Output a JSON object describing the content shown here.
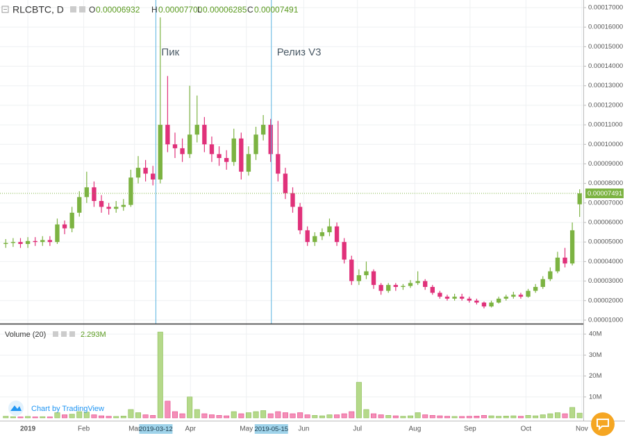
{
  "chart_data": {
    "type": "candlestick",
    "title": "RLCBTC, D",
    "xlim": [
      0,
      79
    ],
    "xticks": [
      {
        "value": 3.5,
        "label": "2019"
      },
      {
        "value": 11.1,
        "label": "Feb"
      },
      {
        "value": 18.0,
        "label": "Mar"
      },
      {
        "value": 25.6,
        "label": "Apr"
      },
      {
        "value": 33.2,
        "label": "May"
      },
      {
        "value": 41.0,
        "label": "Jun"
      },
      {
        "value": 48.3,
        "label": "Jul"
      },
      {
        "value": 56.1,
        "label": "Aug"
      },
      {
        "value": 63.6,
        "label": "Sep"
      },
      {
        "value": 71.2,
        "label": "Oct"
      },
      {
        "value": 78.8,
        "label": "Nov"
      }
    ],
    "grid": true,
    "events": [
      {
        "x": 20.9,
        "label": "Пик",
        "date": "2019-03-12"
      },
      {
        "x": 36.6,
        "label": "Релиз V3",
        "date": "2019-05-15"
      }
    ],
    "watermark": "Chart by TradingView",
    "price": {
      "up_color": "#7cb342",
      "down_color": "#e0317a",
      "header_prefixes": [
        "O",
        "H",
        "L",
        "C"
      ],
      "last_labels": {
        "open": "0.00006932",
        "high": "0.00007700",
        "low": "0.00006285",
        "close": "0.00007491"
      },
      "ylim": [
        8.2e-06,
        0.0001739
      ],
      "yticks": [
        {
          "value": 1e-05,
          "label": "0.00001000"
        },
        {
          "value": 2e-05,
          "label": "0.00002000"
        },
        {
          "value": 3e-05,
          "label": "0.00003000"
        },
        {
          "value": 4e-05,
          "label": "0.00004000"
        },
        {
          "value": 5e-05,
          "label": "0.00005000"
        },
        {
          "value": 6e-05,
          "label": "0.00006000"
        },
        {
          "value": 7e-05,
          "label": "0.00007000"
        },
        {
          "value": 8e-05,
          "label": "0.00008000"
        },
        {
          "value": 9e-05,
          "label": "0.00009000"
        },
        {
          "value": 0.0001,
          "label": "0.00010000"
        },
        {
          "value": 0.00011,
          "label": "0.00011000"
        },
        {
          "value": 0.00012,
          "label": "0.00012000"
        },
        {
          "value": 0.00013,
          "label": "0.00013000"
        },
        {
          "value": 0.00014,
          "label": "0.00014000"
        },
        {
          "value": 0.00015,
          "label": "0.00015000"
        },
        {
          "value": 0.00016,
          "label": "0.00016000"
        },
        {
          "value": 0.00017,
          "label": "0.00017000"
        }
      ],
      "open": [
        4.9e-05,
        4.95e-05,
        5e-05,
        4.9e-05,
        5.05e-05,
        5e-05,
        5.1e-05,
        5e-05,
        5.9e-05,
        5.7e-05,
        6.5e-05,
        7.3e-05,
        7.8e-05,
        7.1e-05,
        6.8e-05,
        6.7e-05,
        6.8e-05,
        6.9e-05,
        8.3e-05,
        8.8e-05,
        8.5e-05,
        8.2e-05,
        0.00011,
        0.0001,
        9.8e-05,
        9.5e-05,
        0.000105,
        0.00011,
        0.0001,
        9.5e-05,
        9.3e-05,
        9.1e-05,
        0.000103,
        8.6e-05,
        9.5e-05,
        0.000105,
        0.00011,
        9.5e-05,
        8.5e-05,
        7.5e-05,
        6.8e-05,
        5.6e-05,
        5e-05,
        5.3e-05,
        5.5e-05,
        5.8e-05,
        5e-05,
        4.1e-05,
        3e-05,
        3.3e-05,
        3.5e-05,
        2.8e-05,
        2.5e-05,
        2.8e-05,
        2.7e-05,
        2.75e-05,
        2.9e-05,
        3e-05,
        2.7e-05,
        2.4e-05,
        2.2e-05,
        2.1e-05,
        2.2e-05,
        2.1e-05,
        2e-05,
        1.9e-05,
        1.7e-05,
        1.9e-05,
        2.1e-05,
        2.2e-05,
        2.3e-05,
        2.2e-05,
        2.5e-05,
        2.7e-05,
        3.1e-05,
        3.5e-05,
        4.2e-05,
        3.9e-05,
        6.932e-05
      ],
      "high": [
        5.15e-05,
        5.2e-05,
        5.2e-05,
        5.25e-05,
        5.25e-05,
        5.3e-05,
        5.3e-05,
        6.2e-05,
        6.1e-05,
        6.8e-05,
        7.6e-05,
        8.6e-05,
        8.1e-05,
        7.4e-05,
        7e-05,
        7.1e-05,
        7.2e-05,
        8.7e-05,
        9.4e-05,
        9.2e-05,
        8.9e-05,
        0.000165,
        0.000135,
        0.000106,
        0.000103,
        0.00013,
        0.000125,
        0.000114,
        0.000104,
        9.9e-05,
        9.7e-05,
        0.000108,
        0.000106,
        9.9e-05,
        0.000109,
        0.000115,
        0.000113,
        0.000112,
        8.8e-05,
        7.8e-05,
        7e-05,
        5.8e-05,
        5.5e-05,
        5.7e-05,
        6.2e-05,
        6e-05,
        5.2e-05,
        4.3e-05,
        3.6e-05,
        4e-05,
        3.6e-05,
        2.9e-05,
        2.9e-05,
        2.9e-05,
        2.85e-05,
        3.05e-05,
        3.5e-05,
        3.1e-05,
        2.8e-05,
        2.5e-05,
        2.3e-05,
        2.35e-05,
        2.35e-05,
        2.2e-05,
        2.1e-05,
        1.95e-05,
        2e-05,
        2.2e-05,
        2.3e-05,
        2.45e-05,
        2.4e-05,
        2.6e-05,
        2.85e-05,
        3.25e-05,
        3.7e-05,
        4.5e-05,
        4.7e-05,
        6e-05,
        7.7e-05
      ],
      "low": [
        4.7e-05,
        4.75e-05,
        4.7e-05,
        4.7e-05,
        4.8e-05,
        4.8e-05,
        4.8e-05,
        4.9e-05,
        5.4e-05,
        5.5e-05,
        6.3e-05,
        7e-05,
        6.8e-05,
        6.5e-05,
        6.4e-05,
        6.5e-05,
        6.6e-05,
        6.8e-05,
        8e-05,
        8.1e-05,
        7.9e-05,
        8e-05,
        9.6e-05,
        9.3e-05,
        9.1e-05,
        9.3e-05,
        0.000101,
        9.6e-05,
        9.1e-05,
        8.9e-05,
        8.7e-05,
        8.9e-05,
        8.2e-05,
        8.4e-05,
        9.2e-05,
        0.000102,
        9.1e-05,
        8.1e-05,
        7.2e-05,
        6.5e-05,
        5.4e-05,
        4.8e-05,
        4.8e-05,
        5.1e-05,
        5.3e-05,
        4.8e-05,
        3.9e-05,
        2.8e-05,
        2.8e-05,
        3.1e-05,
        2.6e-05,
        2.3e-05,
        2.4e-05,
        2.5e-05,
        2.55e-05,
        2.65e-05,
        2.8e-05,
        2.55e-05,
        2.3e-05,
        2.1e-05,
        2e-05,
        2e-05,
        2e-05,
        1.9e-05,
        1.8e-05,
        1.6e-05,
        1.65e-05,
        1.85e-05,
        2e-05,
        2.1e-05,
        2.1e-05,
        2.15e-05,
        2.4e-05,
        2.6e-05,
        3e-05,
        3.4e-05,
        3.7e-05,
        3.8e-05,
        6.285e-05
      ],
      "close": [
        4.95e-05,
        5e-05,
        4.9e-05,
        5.05e-05,
        5e-05,
        5.1e-05,
        5e-05,
        5.9e-05,
        5.7e-05,
        6.5e-05,
        7.3e-05,
        7.8e-05,
        7.1e-05,
        6.8e-05,
        6.7e-05,
        6.8e-05,
        6.9e-05,
        8.3e-05,
        8.8e-05,
        8.5e-05,
        8.2e-05,
        0.00011,
        0.0001,
        9.8e-05,
        9.5e-05,
        0.000105,
        0.00011,
        0.0001,
        9.5e-05,
        9.3e-05,
        9.1e-05,
        0.000103,
        8.6e-05,
        9.5e-05,
        0.000105,
        0.00011,
        9.5e-05,
        8.5e-05,
        7.5e-05,
        6.8e-05,
        5.6e-05,
        5e-05,
        5.3e-05,
        5.5e-05,
        5.8e-05,
        5e-05,
        4.1e-05,
        3e-05,
        3.3e-05,
        3.5e-05,
        2.8e-05,
        2.5e-05,
        2.8e-05,
        2.7e-05,
        2.75e-05,
        2.9e-05,
        3e-05,
        2.7e-05,
        2.4e-05,
        2.2e-05,
        2.1e-05,
        2.2e-05,
        2.1e-05,
        2e-05,
        1.9e-05,
        1.7e-05,
        1.9e-05,
        2.1e-05,
        2.2e-05,
        2.3e-05,
        2.2e-05,
        2.5e-05,
        2.7e-05,
        3.1e-05,
        3.5e-05,
        4.2e-05,
        3.9e-05,
        5.6e-05,
        7.491e-05
      ]
    },
    "volume": {
      "name": "Volume (20)",
      "value_label": "2.293M",
      "up_color": "#b5d98a",
      "down_color": "#f48fb8",
      "ylim": [
        0,
        44000000
      ],
      "yticks": [
        {
          "value": 10000000,
          "label": "10M"
        },
        {
          "value": 20000000,
          "label": "20M"
        },
        {
          "value": 30000000,
          "label": "30M"
        },
        {
          "value": 40000000,
          "label": "40M"
        }
      ],
      "values": [
        800000.0,
        600000.0,
        500000.0,
        700000.0,
        500000.0,
        600000.0,
        500000.0,
        2500000.0,
        1500000.0,
        1800000.0,
        3000000.0,
        2800000.0,
        1500000.0,
        1000000.0,
        800000.0,
        700000.0,
        900000.0,
        4000000.0,
        2500000.0,
        1500000.0,
        1200000.0,
        41000000.0,
        8000000.0,
        3000000.0,
        2000000.0,
        10000000.0,
        4000000.0,
        2000000.0,
        1500000.0,
        1200000.0,
        1000000.0,
        3000000.0,
        2000000.0,
        2500000.0,
        3000000.0,
        3500000.0,
        2000000.0,
        3000000.0,
        2500000.0,
        2000000.0,
        2500000.0,
        1500000.0,
        1200000.0,
        1000000.0,
        1500000.0,
        1500000.0,
        2000000.0,
        3000000.0,
        17000000.0,
        4000000.0,
        2000000.0,
        1500000.0,
        1200000.0,
        1000000.0,
        800000.0,
        1000000.0,
        2500000.0,
        1500000.0,
        1200000.0,
        1000000.0,
        800000.0,
        700000.0,
        700000.0,
        800000.0,
        900000.0,
        1200000.0,
        1000000.0,
        800000.0,
        900000.0,
        1000000.0,
        800000.0,
        1200000.0,
        1000000.0,
        1500000.0,
        2000000.0,
        2500000.0,
        2000000.0,
        5000000.0,
        2293000
      ]
    }
  }
}
